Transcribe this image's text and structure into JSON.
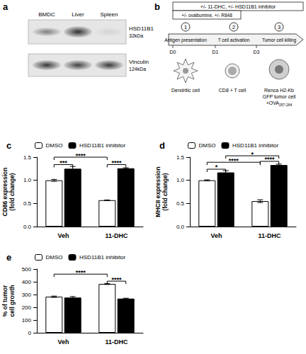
{
  "blot": {
    "label": "a",
    "lanes": [
      "BMDC",
      "Liver",
      "Spleen"
    ],
    "rows": [
      {
        "protein": "HSD11B1",
        "size": "32kDa"
      },
      {
        "protein": "Vinculin",
        "size": "124kDa"
      }
    ]
  },
  "schematic": {
    "label": "b",
    "treatments": [
      "+/- 11-DHC, +/- HSD11B1 inhibitor",
      "+/- ovalbumine, +/- R848"
    ],
    "steps": [
      {
        "number": "1",
        "name": "Antigen presentation"
      },
      {
        "number": "2",
        "name": "T cell activation"
      },
      {
        "number": "3",
        "name": "Tumor cell killing"
      }
    ],
    "days": [
      "D0",
      "D1",
      "D3"
    ],
    "cells": [
      {
        "lines": [
          "Dendritic cell"
        ]
      },
      {
        "lines": [
          "CD8 + T cell"
        ]
      },
      {
        "lines": [
          "Renca H2-Kb",
          "GFP tumor cell",
          "+OVA"
        ],
        "subscript": "257-264"
      }
    ]
  },
  "chart_data": [
    {
      "type": "bar",
      "title": "c",
      "categories": [
        "Veh",
        "11-DHC"
      ],
      "y_label": "CD86 expression\n(fold change)",
      "ylim": [
        0,
        1.5
      ],
      "yticks": [
        {
          "value": 0,
          "label": "0.0"
        },
        {
          "value": 0.5,
          "label": "0.5"
        },
        {
          "value": 1,
          "label": "1.0"
        },
        {
          "value": 1.5,
          "label": "1.5"
        }
      ],
      "grid": false,
      "legend": "top",
      "series": [
        {
          "name": "DMSO",
          "color": "#ffffff",
          "values": [
            1.0,
            0.57
          ],
          "errors": [
            0.02,
            0.005
          ]
        },
        {
          "name": "HSD11B1 inhibitor",
          "color": "#000000",
          "values": [
            1.25,
            1.26
          ],
          "errors": [
            0.05,
            0.01
          ]
        }
      ],
      "significance": [
        {
          "from": [
            0,
            0
          ],
          "to": [
            0,
            1
          ],
          "y": 1.34,
          "label": "***"
        },
        {
          "from": [
            0,
            0
          ],
          "to": [
            1,
            0
          ],
          "y": 1.5,
          "label": "****"
        },
        {
          "from": [
            1,
            0
          ],
          "to": [
            1,
            1
          ],
          "y": 1.34,
          "label": "****"
        }
      ]
    },
    {
      "type": "bar",
      "title": "d",
      "categories": [
        "Veh",
        "11-DHC"
      ],
      "y_label": "MHCII expression\n(fold change)",
      "ylim": [
        0,
        1.5
      ],
      "yticks": [
        {
          "value": 0,
          "label": "0.0"
        },
        {
          "value": 0.5,
          "label": "0.5"
        },
        {
          "value": 1,
          "label": "1.0"
        },
        {
          "value": 1.5,
          "label": "1.5"
        }
      ],
      "grid": false,
      "legend": "top",
      "series": [
        {
          "name": "DMSO",
          "color": "#ffffff",
          "values": [
            1.0,
            0.55
          ],
          "errors": [
            0.01,
            0.03
          ]
        },
        {
          "name": "HSD11B1 inhibitor",
          "color": "#000000",
          "values": [
            1.17,
            1.33
          ],
          "errors": [
            0.04,
            0.02
          ]
        }
      ],
      "significance": [
        {
          "from": [
            0,
            0
          ],
          "to": [
            0,
            1
          ],
          "y": 1.24,
          "label": "*"
        },
        {
          "from": [
            0,
            0
          ],
          "to": [
            1,
            0
          ],
          "y": 1.39,
          "label": "****"
        },
        {
          "from": [
            0,
            1
          ],
          "to": [
            1,
            1
          ],
          "y": 1.53,
          "label": "*"
        },
        {
          "from": [
            1,
            0
          ],
          "to": [
            1,
            1
          ],
          "y": 1.41,
          "label": "****"
        }
      ]
    },
    {
      "type": "bar",
      "title": "e",
      "categories": [
        "Veh",
        "11-DHC"
      ],
      "y_label": "% of tumor\ncell growth",
      "ylim": [
        0,
        500
      ],
      "yticks": [
        0,
        100,
        200,
        300,
        400,
        500
      ],
      "grid": false,
      "legend": "top",
      "series": [
        {
          "name": "DMSO",
          "color": "#ffffff",
          "values": [
            283,
            383
          ],
          "errors": [
            5,
            4
          ]
        },
        {
          "name": "HSD11B1 inhibitor",
          "color": "#000000",
          "values": [
            276,
            268
          ],
          "errors": [
            8,
            3
          ]
        }
      ],
      "significance": [
        {
          "from": [
            0,
            0
          ],
          "to": [
            1,
            0
          ],
          "y": 460,
          "label": "****"
        },
        {
          "from": [
            1,
            0
          ],
          "to": [
            1,
            1
          ],
          "y": 405,
          "label": "****"
        }
      ]
    }
  ]
}
